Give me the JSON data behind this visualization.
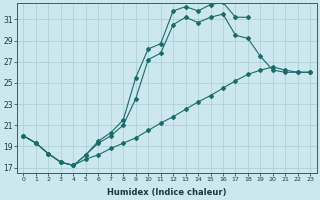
{
  "xlabel": "Humidex (Indice chaleur)",
  "background_color": "#cce8ee",
  "grid_color": "#aaccd4",
  "line_color": "#1a6b6b",
  "xlim": [
    -0.5,
    23.5
  ],
  "ylim": [
    16.5,
    32.5
  ],
  "xticks": [
    0,
    1,
    2,
    3,
    4,
    5,
    6,
    7,
    8,
    9,
    10,
    11,
    12,
    13,
    14,
    15,
    16,
    17,
    18,
    19,
    20,
    21,
    22,
    23
  ],
  "yticks": [
    17,
    19,
    21,
    23,
    25,
    27,
    29,
    31
  ],
  "line1_x": [
    0,
    1,
    2,
    3,
    4,
    5,
    6,
    7,
    8,
    9,
    10,
    11,
    12,
    13,
    14,
    15,
    16,
    17,
    18
  ],
  "line1_y": [
    20.0,
    19.3,
    18.3,
    17.5,
    17.2,
    18.2,
    19.5,
    20.3,
    21.5,
    25.5,
    28.2,
    28.7,
    31.8,
    32.2,
    31.8,
    32.4,
    32.6,
    31.2,
    31.2
  ],
  "line2_x": [
    0,
    1,
    2,
    3,
    4,
    5,
    6,
    7,
    8,
    9,
    10,
    11,
    12,
    13,
    14,
    15,
    16,
    17,
    18,
    19,
    20,
    21,
    22,
    23
  ],
  "line2_y": [
    20.0,
    19.3,
    18.3,
    17.5,
    17.2,
    18.2,
    19.3,
    20.0,
    21.0,
    23.5,
    27.2,
    27.8,
    30.5,
    31.2,
    30.7,
    31.2,
    31.5,
    29.5,
    29.2,
    27.5,
    26.2,
    26.0,
    26.0,
    26.0
  ],
  "line3_x": [
    0,
    1,
    2,
    3,
    4,
    5,
    6,
    7,
    8,
    9,
    10,
    11,
    12,
    13,
    14,
    15,
    16,
    17,
    18,
    19,
    20,
    21,
    22,
    23
  ],
  "line3_y": [
    20.0,
    19.3,
    18.3,
    17.5,
    17.2,
    17.8,
    18.2,
    18.8,
    19.3,
    19.8,
    20.5,
    21.2,
    21.8,
    22.5,
    23.2,
    23.8,
    24.5,
    25.2,
    25.8,
    26.2,
    26.5,
    26.2,
    26.0,
    26.0
  ]
}
